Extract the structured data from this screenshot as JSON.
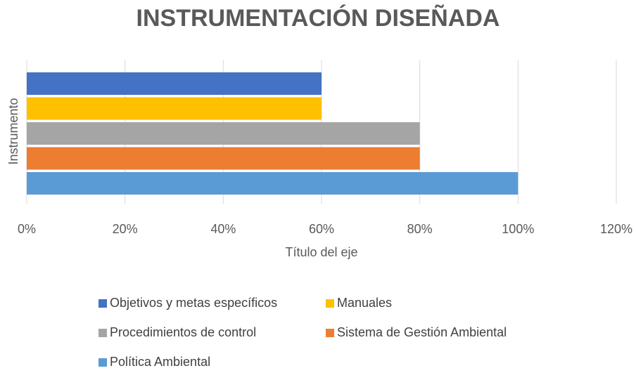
{
  "chart_data": {
    "type": "barh",
    "title": "INSTRUMENTACIÓN DISEÑADA",
    "xlabel": "Título del eje",
    "ylabel": "Instrumento",
    "categories": [
      null
    ],
    "series": [
      {
        "name": "Objetivos y metas específicos",
        "color": "#4472c4",
        "values": [
          60
        ]
      },
      {
        "name": "Manuales",
        "color": "#ffc000",
        "values": [
          60
        ]
      },
      {
        "name": "Procedimientos de control",
        "color": "#a5a5a5",
        "values": [
          80
        ]
      },
      {
        "name": "Sistema de Gestión Ambiental",
        "color": "#ed7d31",
        "values": [
          80
        ]
      },
      {
        "name": "Política Ambiental",
        "color": "#5b9bd5",
        "values": [
          100
        ]
      }
    ],
    "xlim": [
      0,
      120
    ],
    "xticks": [
      {
        "value": 0,
        "label": "0%"
      },
      {
        "value": 20,
        "label": "20%"
      },
      {
        "value": 40,
        "label": "40%"
      },
      {
        "value": 60,
        "label": "60%"
      },
      {
        "value": 80,
        "label": "80%"
      },
      {
        "value": 100,
        "label": "100%"
      },
      {
        "value": 120,
        "label": "120%"
      }
    ],
    "grid": true,
    "legend": "bottom"
  }
}
